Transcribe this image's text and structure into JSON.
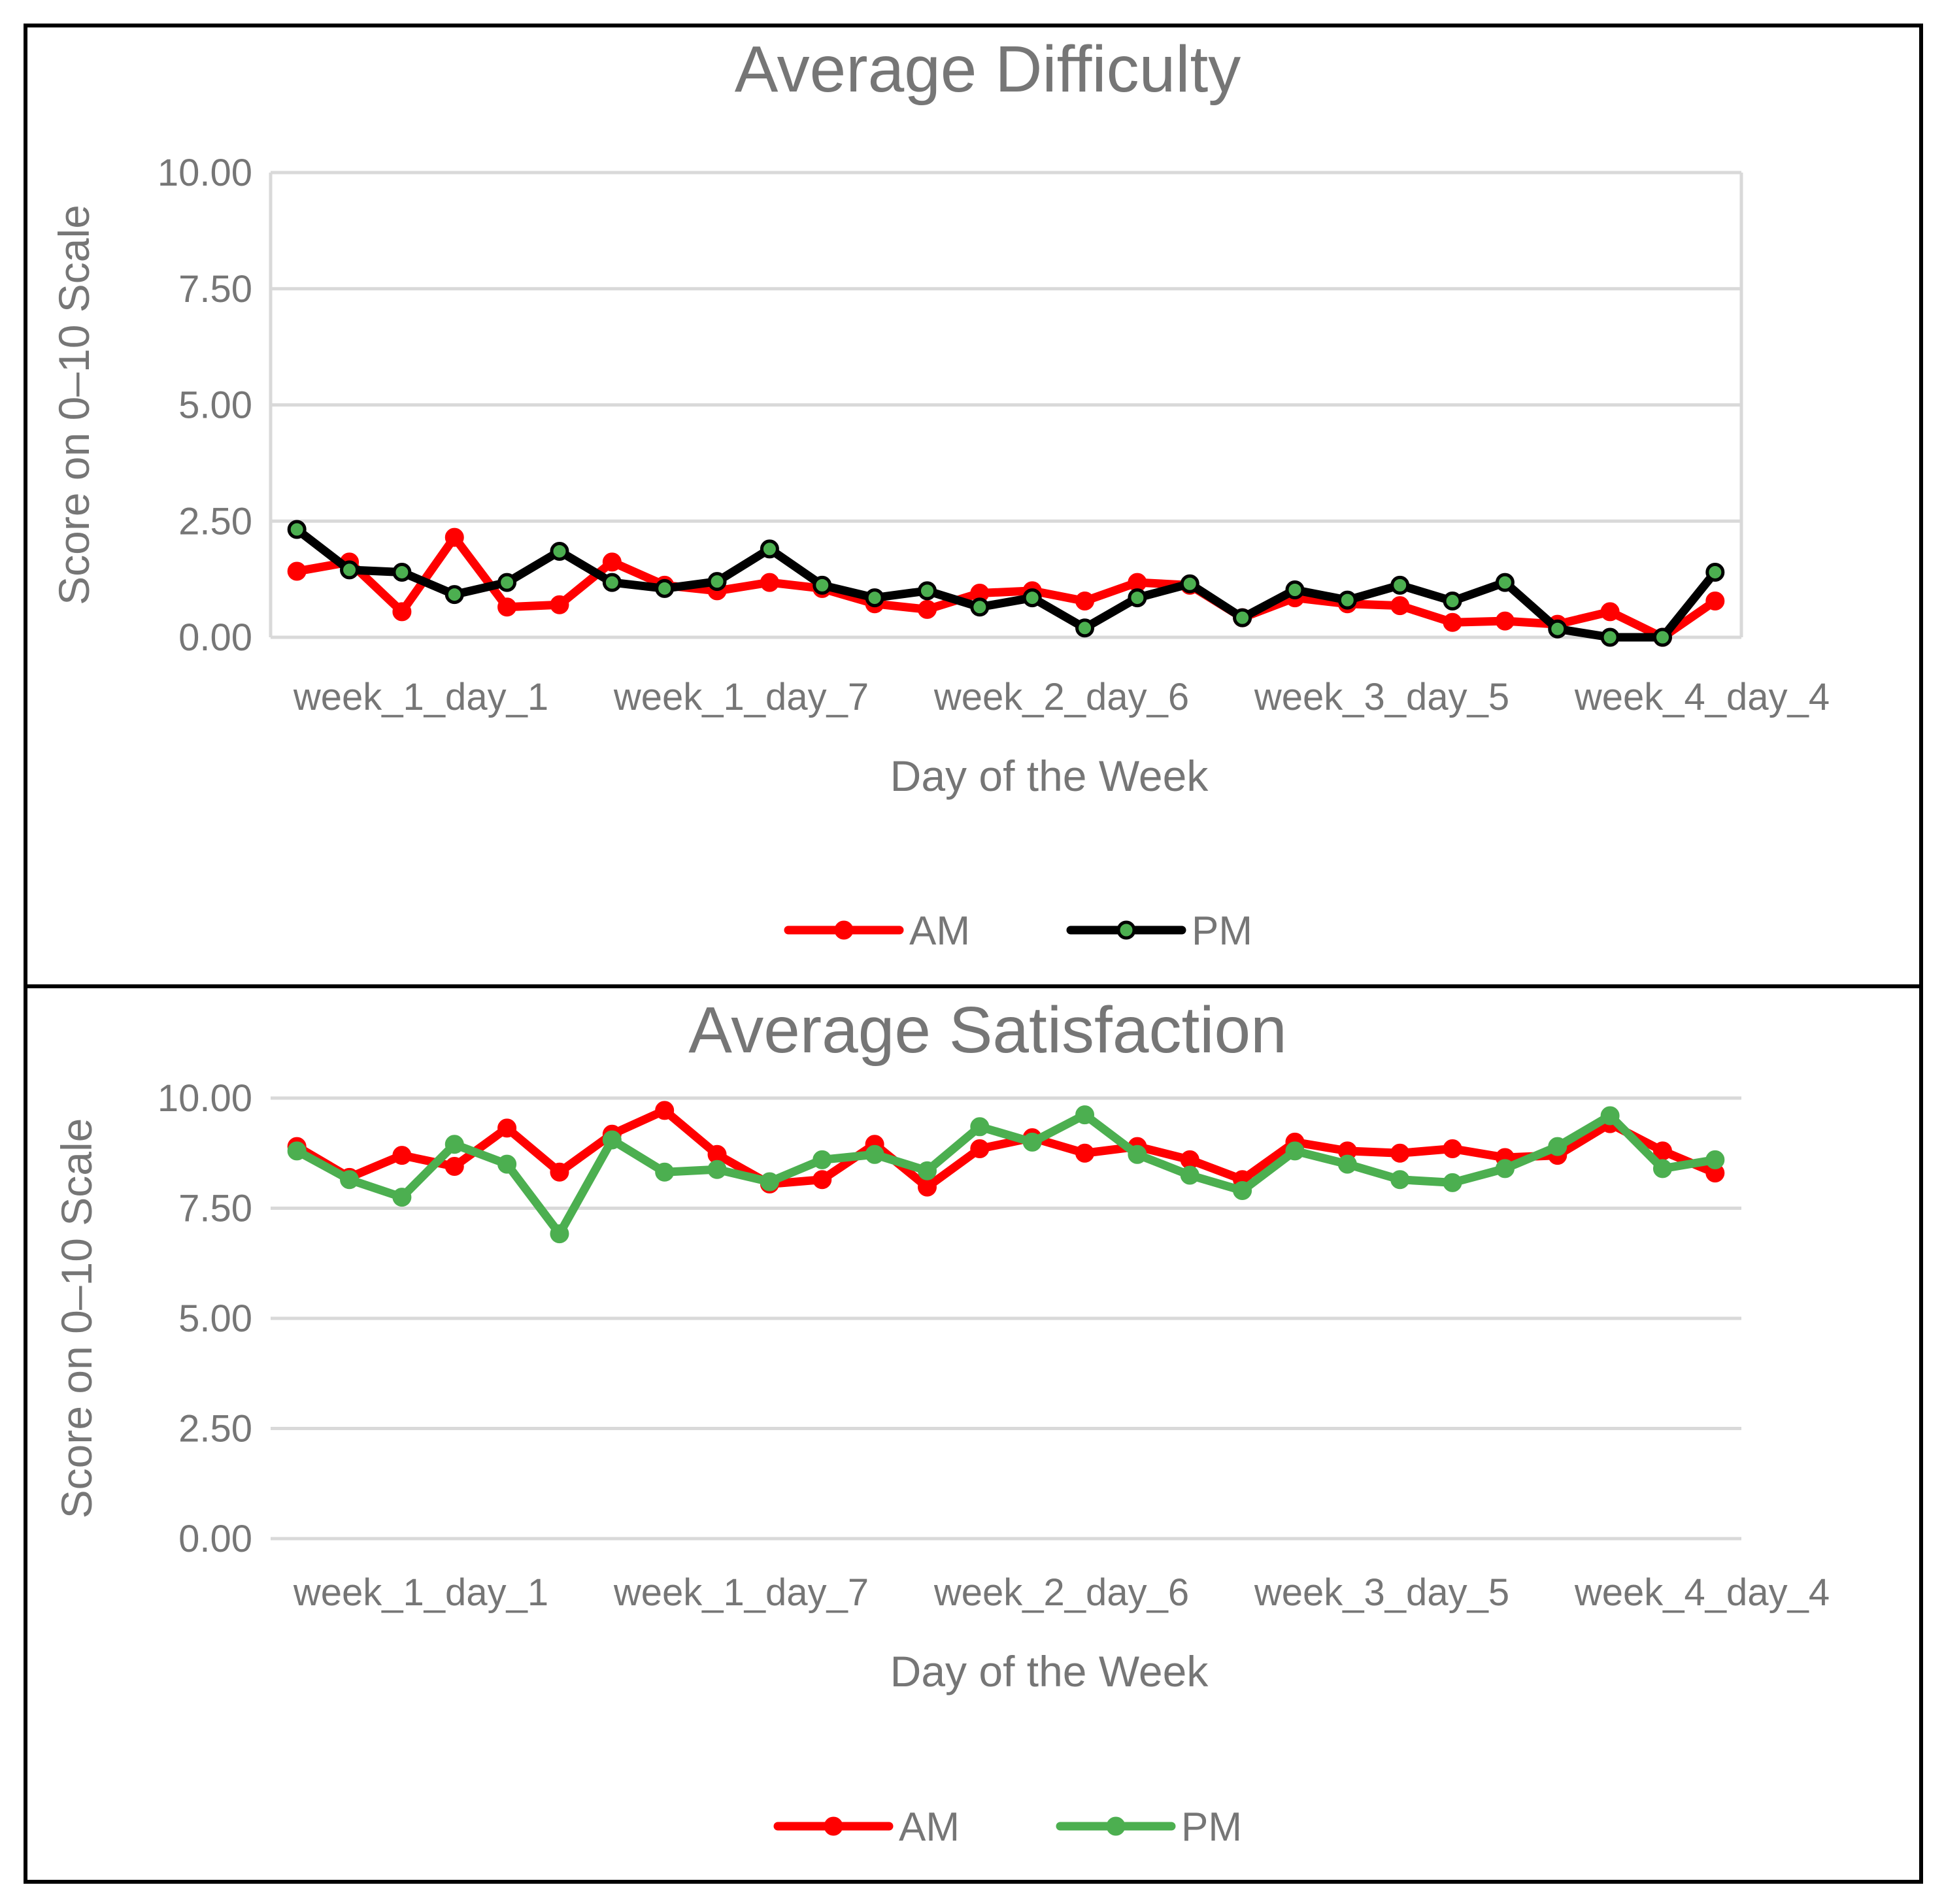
{
  "chart_data": [
    {
      "type": "line",
      "title": "Average Difficulty",
      "xlabel": "Day of the Week",
      "ylabel": "Score on 0–10 Scale",
      "ylim": [
        0,
        10
      ],
      "yticks": [
        "0.00",
        "2.50",
        "5.00",
        "7.50",
        "10.00"
      ],
      "x_tick_labels": [
        "week_1_day_1",
        "week_1_day_7",
        "week_2_day_6",
        "week_3_day_5",
        "week_4_day_4"
      ],
      "grid": true,
      "legend": "bottom",
      "series": [
        {
          "name": "AM",
          "color": "#ff0000",
          "marker_color": "#ff0000",
          "values": [
            1.42,
            1.62,
            0.55,
            2.15,
            0.65,
            0.7,
            1.62,
            1.12,
            1.0,
            1.18,
            1.05,
            0.72,
            0.6,
            0.95,
            1.0,
            0.78,
            1.18,
            1.12,
            0.42,
            0.85,
            0.72,
            0.68,
            0.32,
            0.35,
            0.28,
            0.55,
            0.0,
            0.78
          ]
        },
        {
          "name": "PM",
          "color": "#000000",
          "marker_color": "#4caf50",
          "values": [
            2.32,
            1.45,
            1.4,
            0.92,
            1.18,
            1.85,
            1.18,
            1.05,
            1.2,
            1.9,
            1.12,
            0.85,
            1.0,
            0.65,
            0.85,
            0.2,
            0.85,
            1.15,
            0.42,
            1.02,
            0.8,
            1.12,
            0.78,
            1.18,
            0.18,
            0.0,
            0.0,
            1.4
          ]
        }
      ]
    },
    {
      "type": "line",
      "title": "Average Satisfaction",
      "xlabel": "Day of the Week",
      "ylabel": "Score on 0–10 Scale",
      "ylim": [
        0,
        10
      ],
      "yticks": [
        "0.00",
        "2.50",
        "5.00",
        "7.50",
        "10.00"
      ],
      "x_tick_labels": [
        "week_1_day_1",
        "week_1_day_7",
        "week_2_day_6",
        "week_3_day_5",
        "week_4_day_4"
      ],
      "grid": true,
      "legend": "bottom",
      "series": [
        {
          "name": "AM",
          "color": "#ff0000",
          "marker_color": "#ff0000",
          "values": [
            8.9,
            8.2,
            8.7,
            8.45,
            9.32,
            8.32,
            9.18,
            9.72,
            8.72,
            8.05,
            8.15,
            8.95,
            7.98,
            8.85,
            9.1,
            8.75,
            8.9,
            8.6,
            8.15,
            9.0,
            8.8,
            8.75,
            8.85,
            8.65,
            8.7,
            9.42,
            8.8,
            8.3
          ]
        },
        {
          "name": "PM",
          "color": "#4caf50",
          "marker_color": "#4caf50",
          "values": [
            8.8,
            8.15,
            7.75,
            8.95,
            8.5,
            6.92,
            9.05,
            8.32,
            8.38,
            8.1,
            8.6,
            8.72,
            8.35,
            9.35,
            9.0,
            9.62,
            8.72,
            8.25,
            7.9,
            8.8,
            8.5,
            8.15,
            8.08,
            8.4,
            8.9,
            9.6,
            8.4,
            8.6
          ]
        }
      ]
    }
  ]
}
